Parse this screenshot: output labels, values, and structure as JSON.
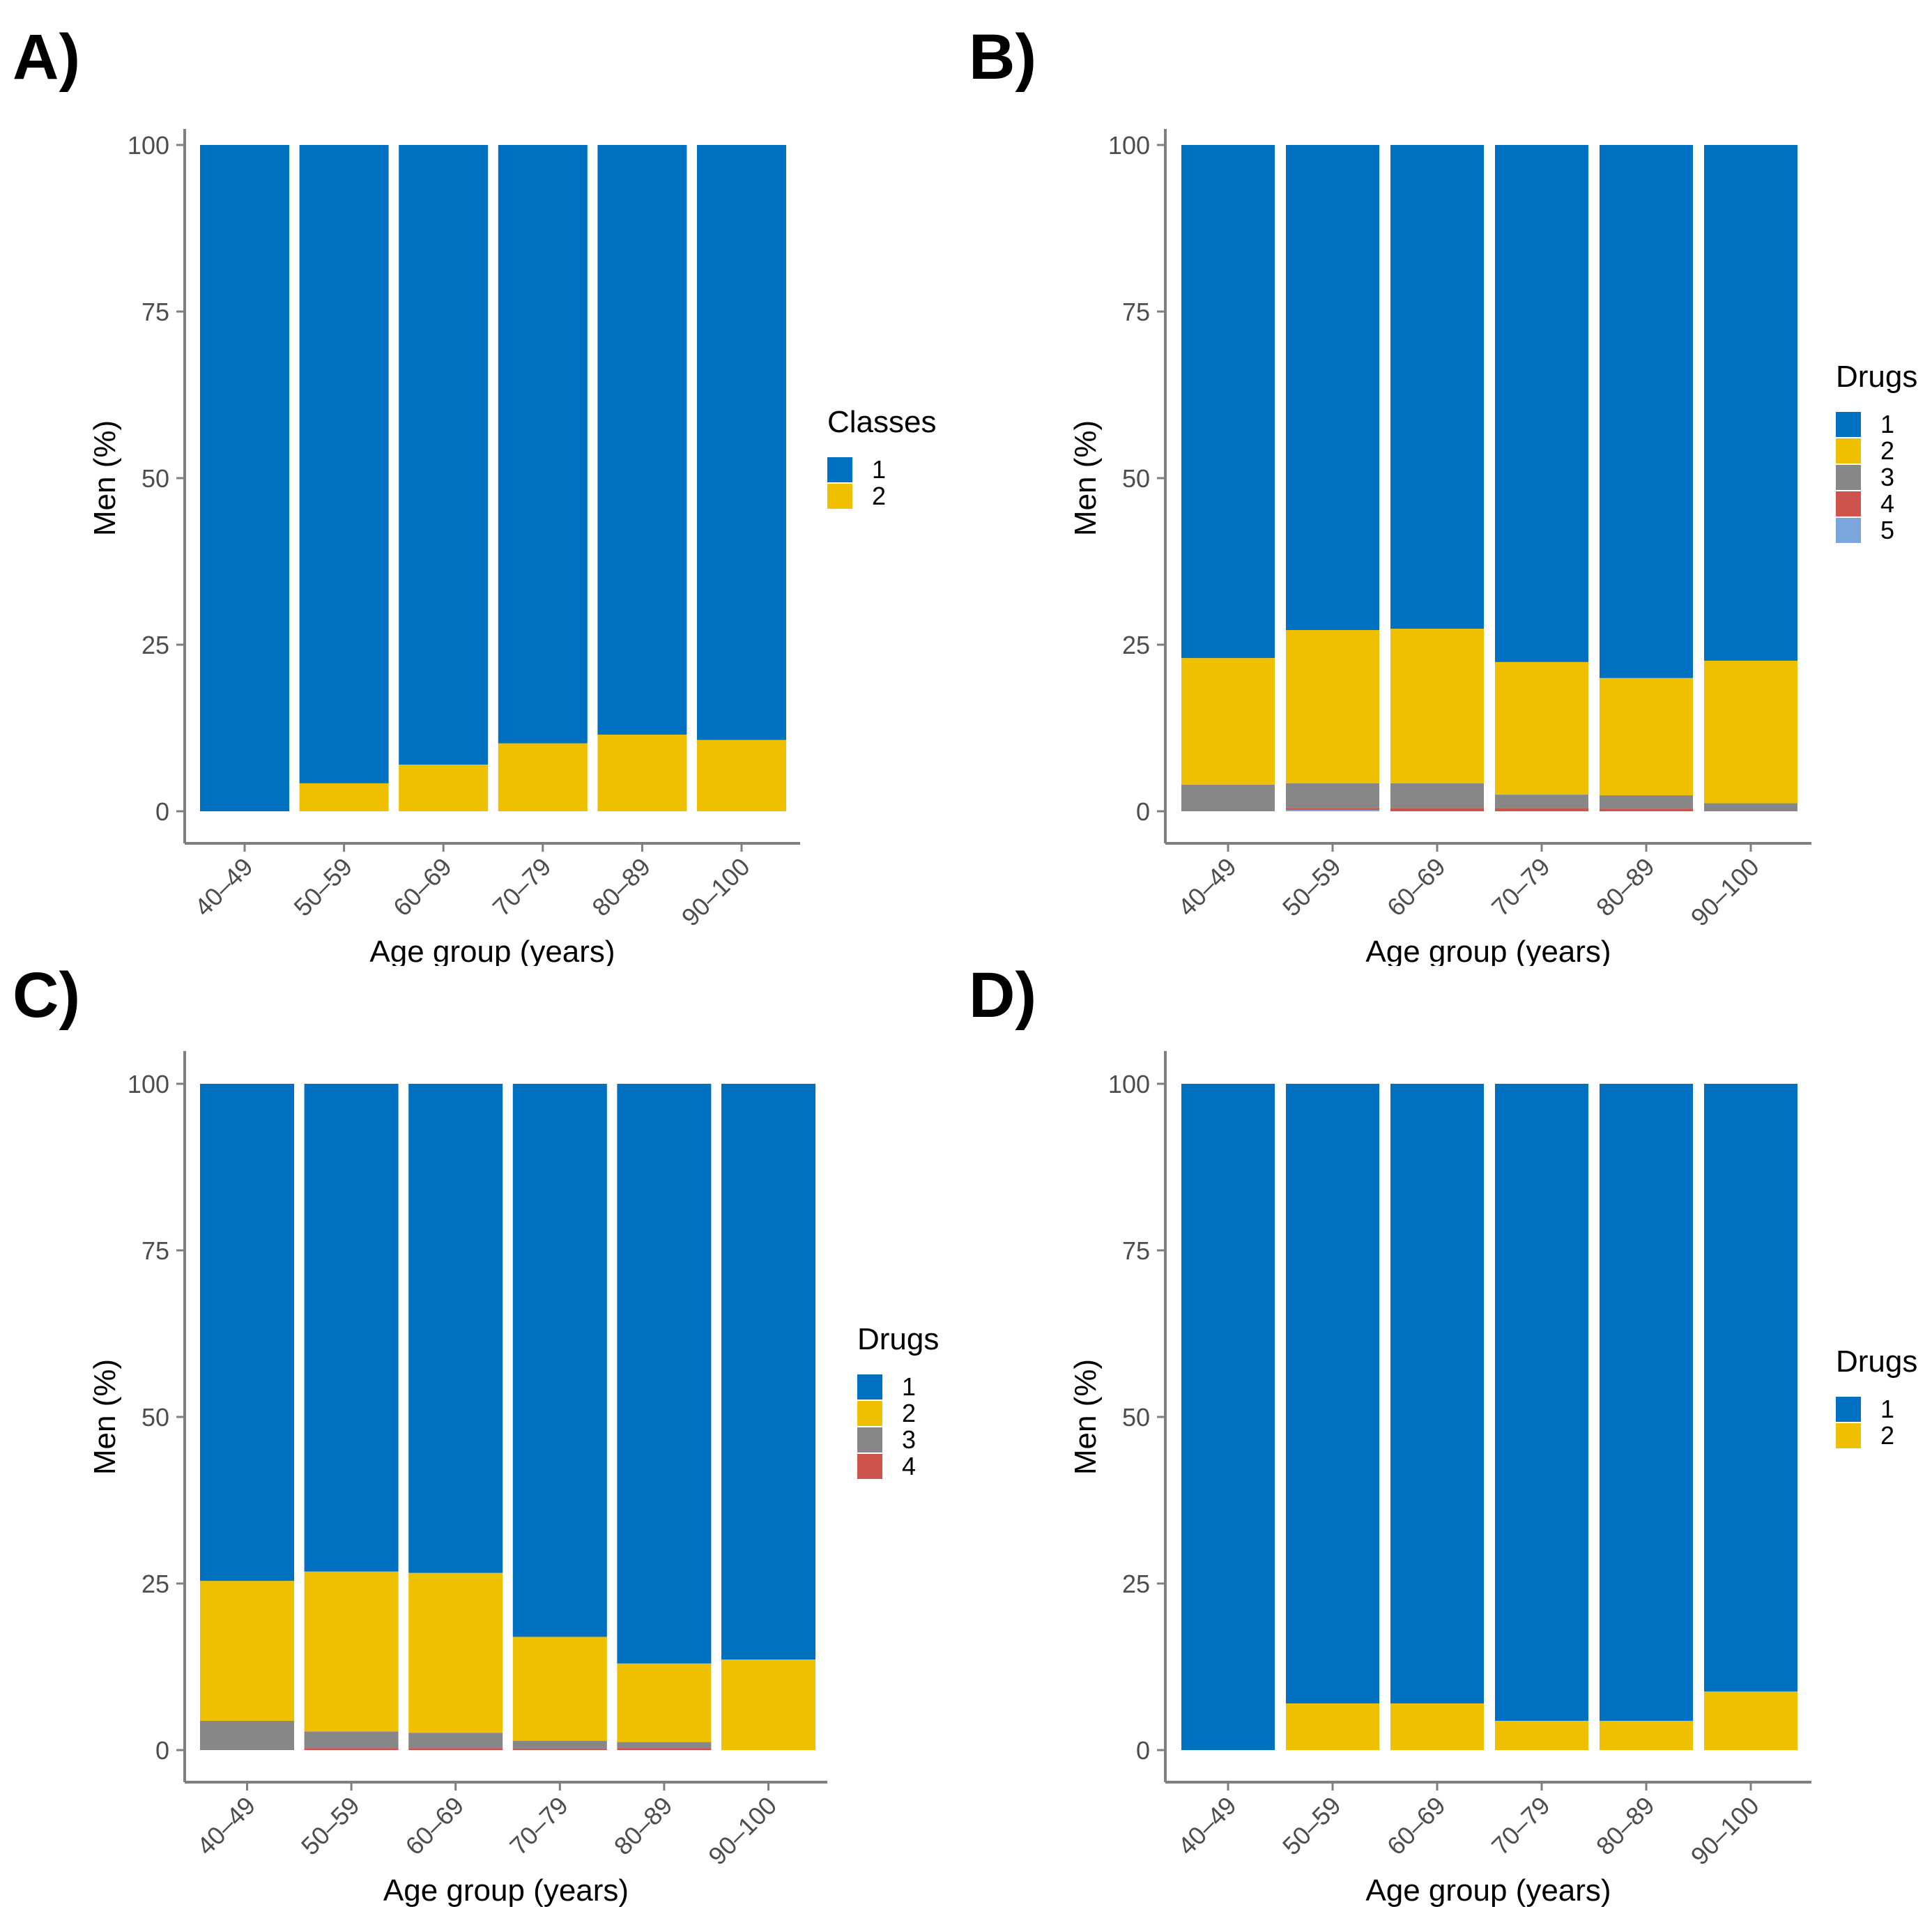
{
  "colors": {
    "1": "#0070C0",
    "2": "#EEC000",
    "3": "#878787",
    "4": "#CD534C",
    "5": "#7AA6DC",
    "axis": "#7f7f7f",
    "tick_text": "#4d4d4d"
  },
  "chart_data": [
    {
      "panel": "A)",
      "type": "bar",
      "stacked": true,
      "xlabel": "Age group (years)",
      "ylabel": "Men (%)",
      "ylim": [
        0,
        100
      ],
      "yticks": [
        0,
        25,
        50,
        75,
        100
      ],
      "categories": [
        "40–49",
        "50–59",
        "60–69",
        "70–79",
        "80–89",
        "90–100"
      ],
      "legend_title": "Classes",
      "series": [
        {
          "name": "1",
          "values": [
            100,
            95.8,
            93.0,
            89.8,
            88.5,
            89.3
          ]
        },
        {
          "name": "2",
          "values": [
            0,
            4.2,
            7.0,
            10.2,
            11.5,
            10.7
          ]
        }
      ]
    },
    {
      "panel": "B)",
      "type": "bar",
      "stacked": true,
      "xlabel": "Age group (years)",
      "ylabel": "Men (%)",
      "ylim": [
        0,
        100
      ],
      "yticks": [
        0,
        25,
        50,
        75,
        100
      ],
      "categories": [
        "40–49",
        "50–59",
        "60–69",
        "70–79",
        "80–89",
        "90–100"
      ],
      "legend_title": "Drugs",
      "series": [
        {
          "name": "1",
          "values": [
            77.0,
            72.8,
            72.6,
            77.6,
            80.0,
            77.4
          ]
        },
        {
          "name": "2",
          "values": [
            19.0,
            23.0,
            23.2,
            19.9,
            17.6,
            21.4
          ]
        },
        {
          "name": "3",
          "values": [
            4.0,
            3.7,
            3.7,
            2.0,
            2.0,
            1.2
          ]
        },
        {
          "name": "4",
          "values": [
            0,
            0.3,
            0.5,
            0.5,
            0.4,
            0
          ]
        },
        {
          "name": "5",
          "values": [
            0,
            0.2,
            0,
            0,
            0,
            0
          ]
        }
      ]
    },
    {
      "panel": "C)",
      "type": "bar",
      "stacked": true,
      "xlabel": "Age group (years)",
      "ylabel": "Men (%)",
      "ylim": [
        0,
        100
      ],
      "yticks": [
        0,
        25,
        50,
        75,
        100
      ],
      "categories": [
        "40–49",
        "50–59",
        "60–69",
        "70–79",
        "80–89",
        "90–100"
      ],
      "legend_title": "Drugs",
      "series": [
        {
          "name": "1",
          "values": [
            74.6,
            73.2,
            73.4,
            83.0,
            87.0,
            86.4
          ]
        },
        {
          "name": "2",
          "values": [
            21.0,
            24.0,
            24.0,
            15.6,
            11.8,
            13.6
          ]
        },
        {
          "name": "3",
          "values": [
            4.4,
            2.5,
            2.3,
            1.2,
            0.9,
            0
          ]
        },
        {
          "name": "4",
          "values": [
            0,
            0.3,
            0.3,
            0.2,
            0.3,
            0
          ]
        }
      ]
    },
    {
      "panel": "D)",
      "type": "bar",
      "stacked": true,
      "xlabel": "Age group (years)",
      "ylabel": "Men (%)",
      "ylim": [
        0,
        100
      ],
      "yticks": [
        0,
        25,
        50,
        75,
        100
      ],
      "categories": [
        "40–49",
        "50–59",
        "60–69",
        "70–79",
        "80–89",
        "90–100"
      ],
      "legend_title": "Drugs",
      "series": [
        {
          "name": "1",
          "values": [
            100,
            93.0,
            93.0,
            95.6,
            95.6,
            91.2
          ]
        },
        {
          "name": "2",
          "values": [
            0,
            7.0,
            7.0,
            4.4,
            4.4,
            8.8
          ]
        }
      ]
    }
  ]
}
